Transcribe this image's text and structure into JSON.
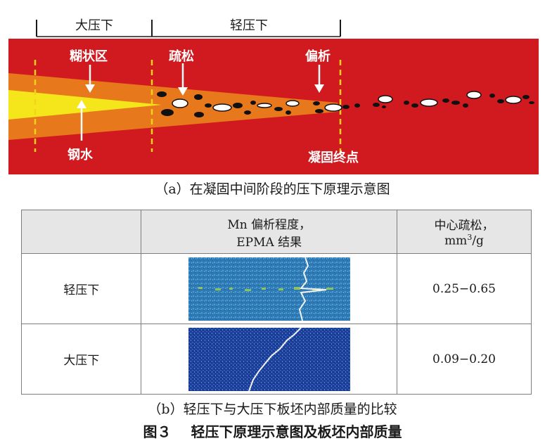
{
  "diagram": {
    "zones": {
      "heavy": "大压下",
      "soft": "轻压下"
    },
    "labels": {
      "mushy": "糊状区",
      "porosity": "疏松",
      "segregation": "偏析",
      "molten_steel": "钢水",
      "solidification_end": "凝固终点"
    },
    "colors": {
      "strand_red": "#d11a1f",
      "mushy_orange": "#e8781c",
      "molten_yellow": "#f4e61a",
      "marker_yellow": "#f3d21a"
    }
  },
  "captions": {
    "a": "（a）在凝固中间阶段的压下原理示意图",
    "b": "（b）轻压下与大压下板坯内部质量的比较",
    "figure_number": "图３",
    "figure_title": "轻压下原理示意图及板坯内部质量"
  },
  "table": {
    "headers": {
      "col1": "",
      "col2_line1": "Mn 偏析程度，",
      "col2_line2": "EPMA 结果",
      "col3_line1": "中心疏松，",
      "col3_line2_base": "mm",
      "col3_line2_sup": "3",
      "col3_line2_tail": "/g"
    },
    "rows": [
      {
        "name": "轻压下",
        "porosity": "0.25−0.65"
      },
      {
        "name": "大压下",
        "porosity": "0.09−0.20"
      }
    ]
  }
}
